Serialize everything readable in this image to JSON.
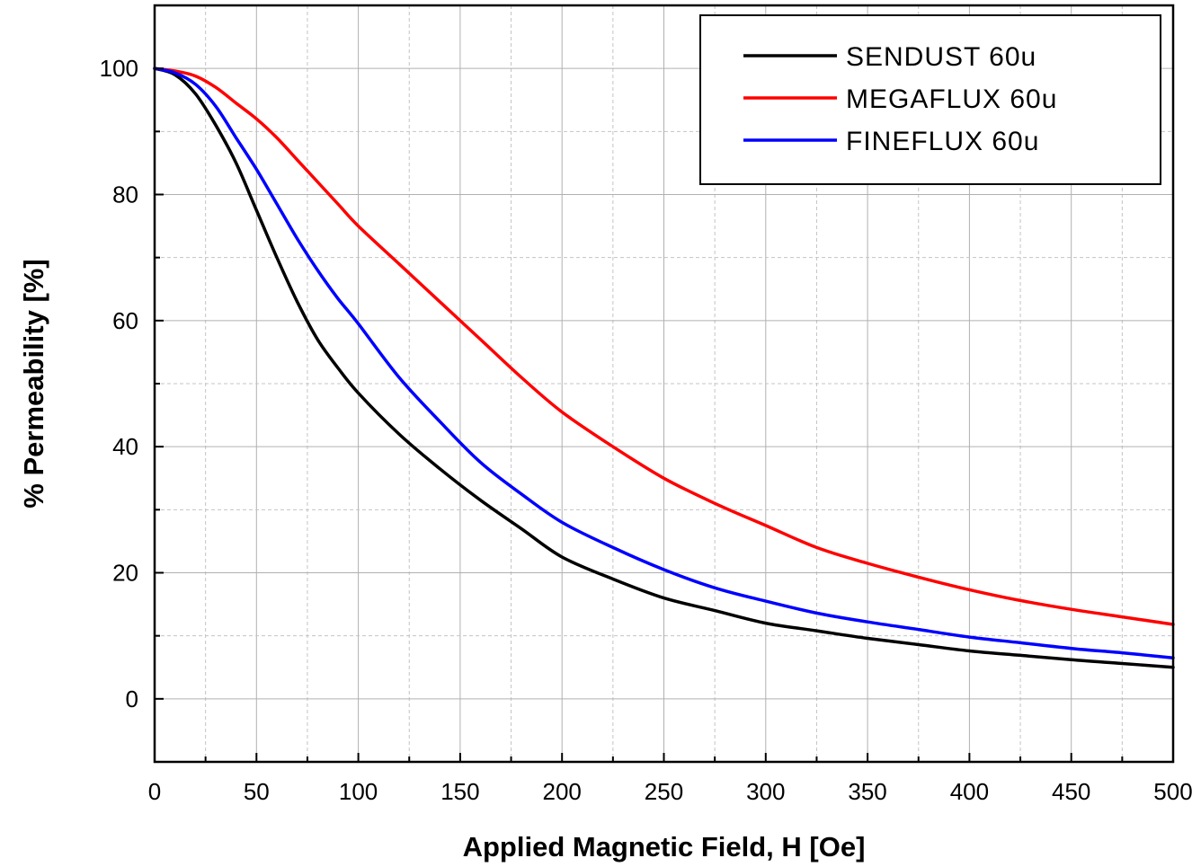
{
  "chart_data": {
    "type": "line",
    "title": "",
    "xlabel": "Applied Magnetic Field, H [Oe]",
    "ylabel": "% Permeability [%]",
    "xlim": [
      0,
      500
    ],
    "ylim": [
      -10,
      110
    ],
    "x_ticks": [
      0,
      50,
      100,
      150,
      200,
      250,
      300,
      350,
      400,
      450,
      500
    ],
    "y_ticks": [
      0,
      20,
      40,
      60,
      80,
      100
    ],
    "grid": true,
    "legend_position": "top-right",
    "series": [
      {
        "name": "SENDUST 60u",
        "color": "#000000",
        "x": [
          0,
          10,
          20,
          30,
          40,
          50,
          60,
          70,
          80,
          90,
          100,
          120,
          140,
          160,
          180,
          200,
          225,
          250,
          275,
          300,
          325,
          350,
          375,
          400,
          425,
          450,
          475,
          500
        ],
        "y": [
          100,
          99,
          96,
          91,
          85,
          77.5,
          70,
          63,
          57,
          52.5,
          48.5,
          42,
          36.5,
          31.5,
          27,
          22.5,
          19,
          16,
          14,
          12,
          10.8,
          9.6,
          8.6,
          7.6,
          6.9,
          6.2,
          5.6,
          5
        ]
      },
      {
        "name": "MEGAFLUX 60u",
        "color": "#ff0000",
        "x": [
          0,
          10,
          20,
          30,
          40,
          50,
          60,
          70,
          80,
          90,
          100,
          120,
          140,
          160,
          180,
          200,
          225,
          250,
          275,
          300,
          325,
          350,
          375,
          400,
          425,
          450,
          475,
          500
        ],
        "y": [
          100,
          99.6,
          98.8,
          97,
          94.5,
          92,
          89,
          85.5,
          82,
          78.5,
          75,
          69,
          63,
          57,
          51,
          45.5,
          40,
          35,
          31,
          27.5,
          24,
          21.5,
          19.3,
          17.3,
          15.6,
          14.2,
          13,
          11.8
        ]
      },
      {
        "name": "FINEFLUX 60u",
        "color": "#0000ff",
        "x": [
          0,
          10,
          20,
          30,
          40,
          50,
          60,
          70,
          80,
          90,
          100,
          120,
          140,
          160,
          180,
          200,
          225,
          250,
          275,
          300,
          325,
          350,
          375,
          400,
          425,
          450,
          475,
          500
        ],
        "y": [
          100,
          99.3,
          97.5,
          94,
          89,
          84,
          78.5,
          73,
          68,
          63.5,
          59.5,
          51,
          44,
          37.5,
          32.5,
          28,
          24,
          20.5,
          17.6,
          15.5,
          13.6,
          12.2,
          11,
          9.8,
          8.9,
          8,
          7.3,
          6.5
        ]
      }
    ]
  }
}
